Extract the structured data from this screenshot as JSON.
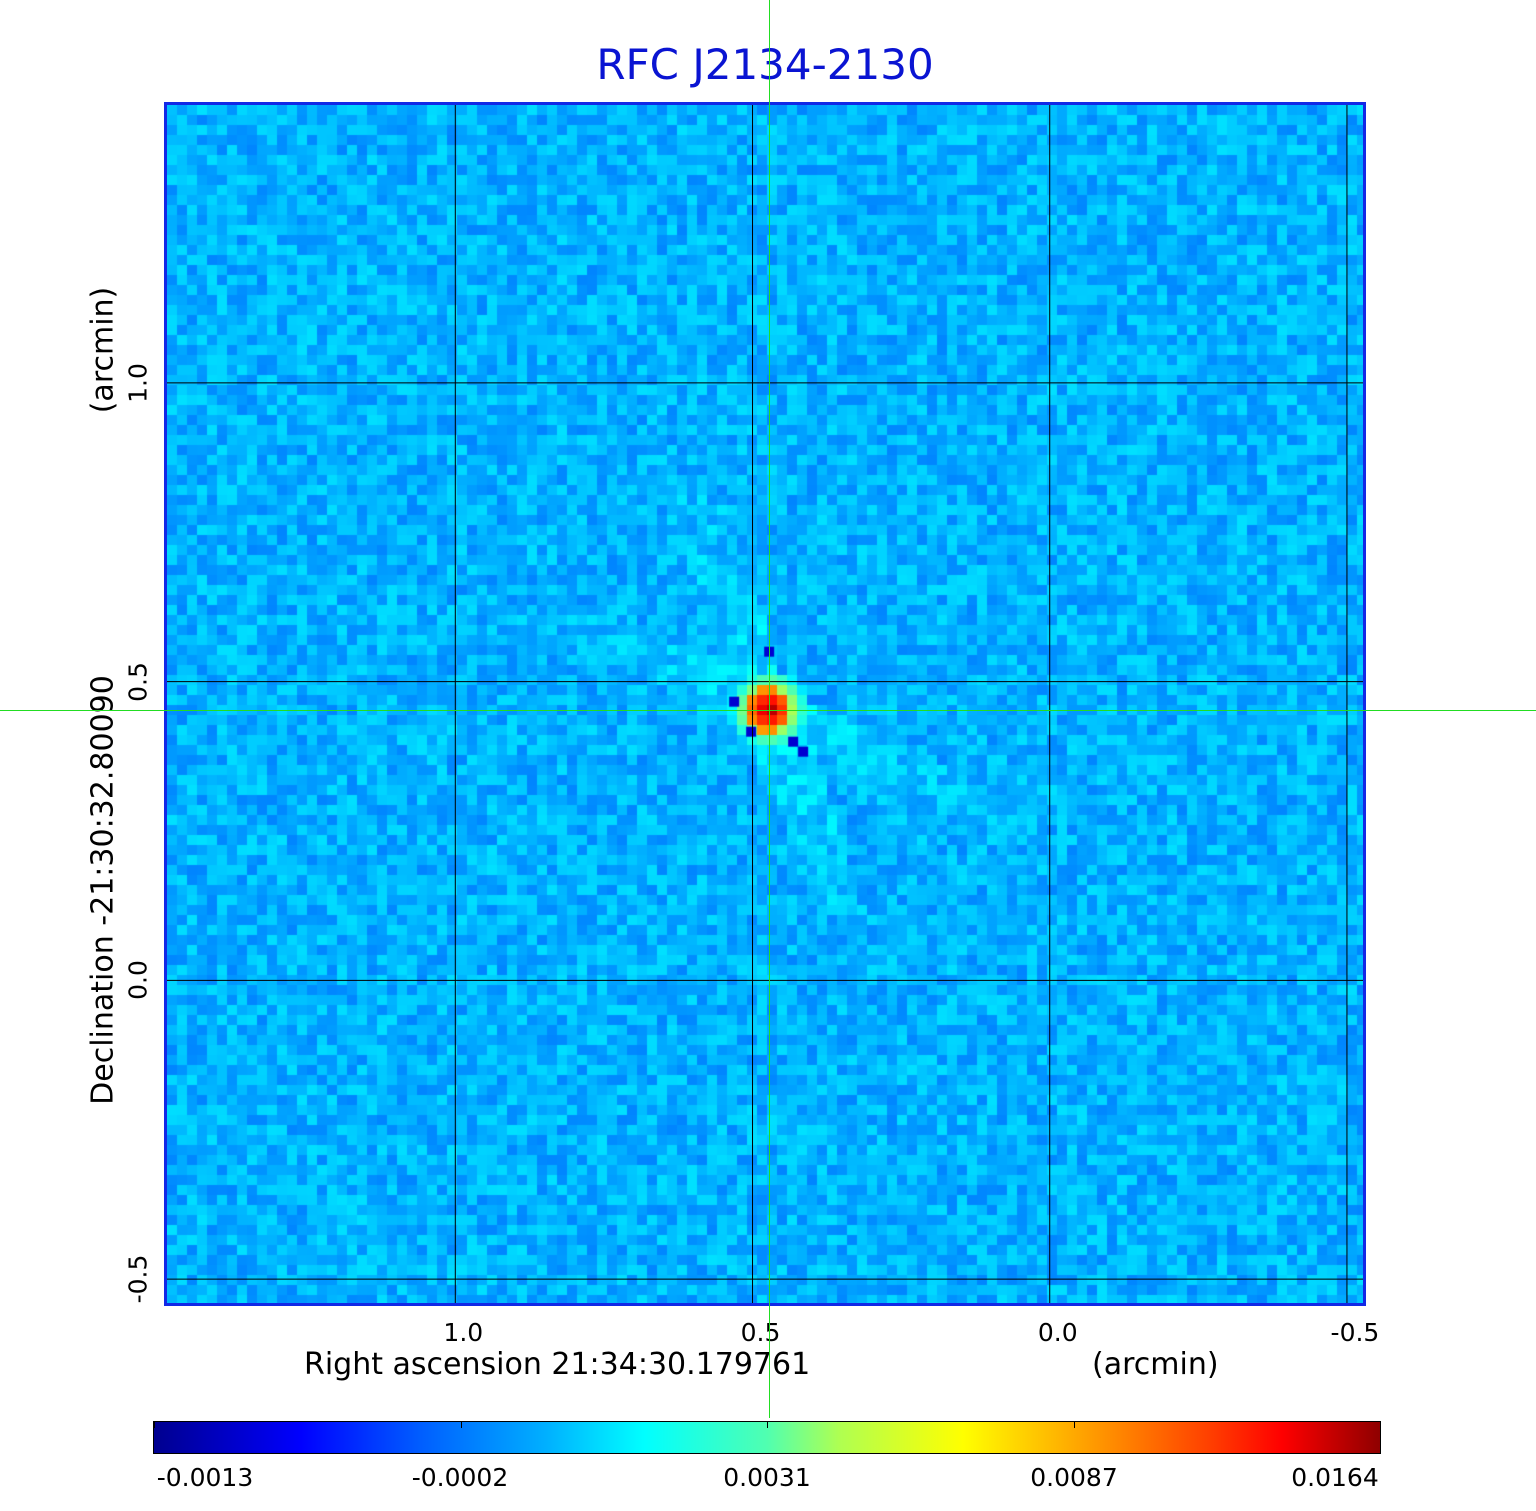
{
  "chart_data": {
    "type": "heatmap",
    "title": "RFC J2134-2130",
    "xlabel": "Right ascension  21:34:30.179761",
    "xunit": "(arcmin)",
    "ylabel": "Declination  -21:30:32.80090",
    "yunit": "(arcmin)",
    "x_ticks": [
      "1.0",
      "0.5",
      "0.0",
      "-0.5"
    ],
    "x_tick_values": [
      1.0,
      0.5,
      0.0,
      -0.5
    ],
    "y_ticks": [
      "1.0",
      "0.5",
      "0.0",
      "-0.5"
    ],
    "y_tick_values": [
      1.0,
      0.5,
      0.0,
      -0.5
    ],
    "xlim": [
      1.485,
      -0.527
    ],
    "ylim": [
      -0.54,
      1.465
    ],
    "grid": true,
    "crosshair": {
      "x": 0.472,
      "y": 0.453
    },
    "source": {
      "x": 0.472,
      "y": 0.453,
      "peak": 0.0164
    },
    "colormap": "jet",
    "colorbar": {
      "position": "bottom",
      "tick_labels": [
        "-0.0013",
        "-0.0002",
        "0.0031",
        "0.0087",
        "0.0164"
      ],
      "tick_values": [
        -0.0013,
        -0.0002,
        0.0031,
        0.0087,
        0.0164
      ]
    },
    "colors": {
      "title": "#0a14d2",
      "frame": "#1228e6",
      "crosshair": "#22dd22",
      "grid": "#000000"
    }
  }
}
